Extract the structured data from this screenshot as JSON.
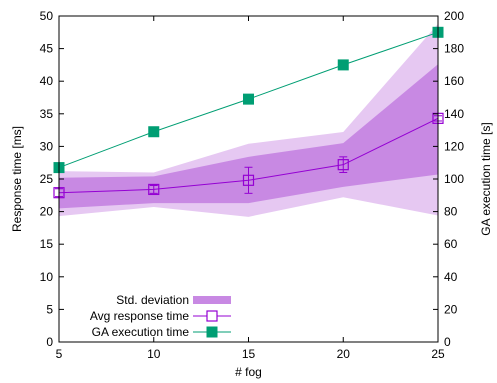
{
  "chart_data": {
    "type": "line",
    "xlabel": "# fog",
    "ylabel": "Response time [ms]",
    "y2label": "GA execution time [s]",
    "x": [
      5,
      10,
      15,
      20,
      25
    ],
    "xlim": [
      5,
      25
    ],
    "ylim": [
      0,
      50
    ],
    "y2lim": [
      0,
      200
    ],
    "xticks": [
      "5",
      "10",
      "15",
      "20",
      "25"
    ],
    "yticks": [
      "0",
      "5",
      "10",
      "15",
      "20",
      "25",
      "30",
      "35",
      "40",
      "45",
      "50"
    ],
    "y2ticks": [
      "0",
      "20",
      "40",
      "60",
      "80",
      "100",
      "120",
      "140",
      "160",
      "180",
      "200"
    ],
    "grid": false,
    "legend_position": "bottom-left",
    "legend": [
      "Std. deviation",
      "Avg response time",
      "GA execution time"
    ],
    "series": [
      {
        "name": "Avg response time",
        "axis": "left",
        "values": [
          22.9,
          23.4,
          24.8,
          27.2,
          34.3
        ],
        "error": [
          0.6,
          0.6,
          2.0,
          1.2,
          0.4
        ],
        "color": "#9400d3",
        "marker": "open-square"
      },
      {
        "name": "Std. deviation",
        "axis": "left",
        "kind": "band",
        "inner_upper": [
          25.2,
          25.4,
          28.4,
          30.5,
          42.6
        ],
        "inner_lower": [
          20.5,
          21.3,
          21.3,
          23.8,
          25.7
        ],
        "outer_upper": [
          26.2,
          26.0,
          30.4,
          32.2,
          48.8
        ],
        "outer_lower": [
          19.3,
          20.7,
          19.2,
          22.2,
          19.4
        ],
        "inner_color": "#c889e3",
        "outer_color": "#e6c8f2"
      },
      {
        "name": "GA execution time",
        "axis": "right",
        "values": [
          107,
          129,
          149,
          170,
          190
        ],
        "color": "#009e73",
        "marker": "filled-square"
      }
    ]
  }
}
